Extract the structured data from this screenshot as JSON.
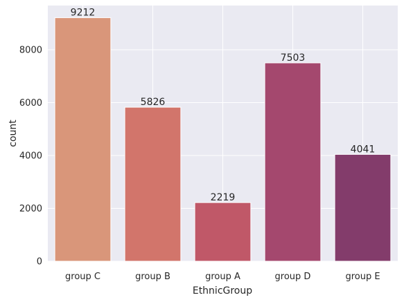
{
  "chart_data": {
    "type": "bar",
    "categories": [
      "group C",
      "group B",
      "group A",
      "group D",
      "group E"
    ],
    "values": [
      9212,
      5826,
      2219,
      7503,
      4041
    ],
    "data_labels": [
      "9212",
      "5826",
      "2219",
      "7503",
      "4041"
    ],
    "xlabel": "EthnicGroup",
    "ylabel": "count",
    "ylim": [
      0,
      9672.6
    ],
    "yticks": [
      0,
      2000,
      4000,
      6000,
      8000
    ],
    "ytick_labels": [
      "0",
      "2000",
      "4000",
      "6000",
      "8000"
    ],
    "grid": true,
    "style": "seaborn-darkgrid",
    "colors": [
      "#d9967a",
      "#d2756b",
      "#c05868",
      "#a4486e",
      "#833c6b"
    ],
    "background_color": "#eaeaf2",
    "grid_color": "#ffffff"
  }
}
